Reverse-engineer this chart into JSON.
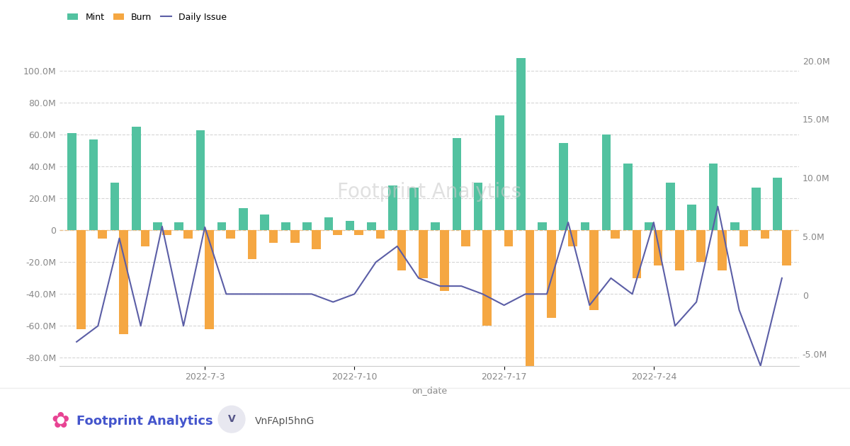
{
  "xlabel": "on_date",
  "legend_labels": [
    "Mint",
    "Burn",
    "Daily Issue"
  ],
  "mint_color": "#52c2a0",
  "burn_color": "#f5a742",
  "daily_issue_color": "#5b5ea6",
  "background_color": "#ffffff",
  "watermark_text": "Footprint Analytics",
  "dates_count": 34,
  "mint": [
    61000000,
    57000000,
    30000000,
    65000000,
    5000000,
    5000000,
    63000000,
    5000000,
    14000000,
    10000000,
    5000000,
    5000000,
    8000000,
    6000000,
    5000000,
    28000000,
    27000000,
    5000000,
    58000000,
    30000000,
    72000000,
    108000000,
    5000000,
    55000000,
    5000000,
    60000000,
    42000000,
    5000000,
    30000000,
    16000000,
    42000000,
    5000000,
    27000000,
    33000000
  ],
  "burn": [
    -62000000,
    -5000000,
    -65000000,
    -10000000,
    -3000000,
    -5000000,
    -62000000,
    -5000000,
    -18000000,
    -8000000,
    -8000000,
    -12000000,
    -3000000,
    -3000000,
    -5000000,
    -25000000,
    -30000000,
    -38000000,
    -10000000,
    -60000000,
    -10000000,
    -95000000,
    -55000000,
    -10000000,
    -50000000,
    -5000000,
    -30000000,
    -22000000,
    -25000000,
    -20000000,
    -25000000,
    -10000000,
    -5000000,
    -22000000
  ],
  "daily_issue": [
    -70000000,
    -60000000,
    -5000000,
    -60000000,
    2500000,
    -60000000,
    2000000,
    -40000000,
    -40000000,
    -40000000,
    -40000000,
    -40000000,
    -45000000,
    -40000000,
    -20000000,
    -10000000,
    -30000000,
    -35000000,
    -35000000,
    -40000000,
    -47000000,
    -40000000,
    -40000000,
    5000000,
    -47000000,
    -30000000,
    -40000000,
    5000000,
    -60000000,
    -45000000,
    15000000,
    -50000000,
    -85000000,
    -30000000
  ],
  "ylim_left": [
    -85000000,
    125000000
  ],
  "ylim_right": [
    -6000000,
    22500000
  ],
  "yticks_left": [
    -80000000,
    -60000000,
    -40000000,
    -20000000,
    0,
    20000000,
    40000000,
    60000000,
    80000000,
    100000000
  ],
  "yticks_right": [
    -5000000,
    0,
    5000000,
    10000000,
    15000000,
    20000000
  ],
  "xtick_labels": [
    "2022-7-3",
    "2022-7-10",
    "2022-7-17",
    "2022-7-24"
  ],
  "xtick_positions": [
    6,
    13,
    20,
    27
  ]
}
